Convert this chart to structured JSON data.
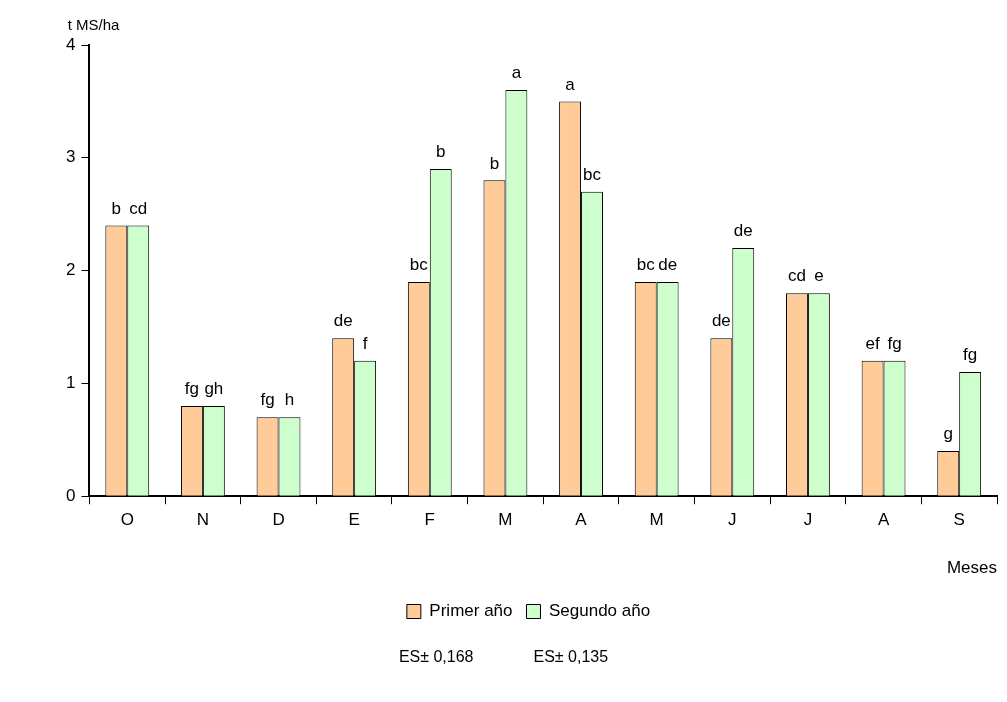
{
  "chart_data": {
    "type": "bar",
    "xlabel": "Meses",
    "ylabel": "t MS/ha",
    "categories": [
      "O",
      "N",
      "D",
      "E",
      "F",
      "M",
      "A",
      "M",
      "J",
      "J",
      "A",
      "S"
    ],
    "series": [
      {
        "name": "Primer año",
        "color": "#ffcc99",
        "values": [
          2.4,
          0.8,
          0.7,
          1.4,
          1.9,
          2.8,
          3.5,
          1.9,
          1.4,
          1.8,
          1.2,
          0.4
        ],
        "value_labels": [
          "b",
          "fg",
          "fg",
          "de",
          "bc",
          "b",
          "a",
          "bc",
          "de",
          "cd",
          "ef",
          "g"
        ]
      },
      {
        "name": "Segundo año",
        "color": "#ccffcc",
        "values": [
          2.4,
          0.8,
          0.7,
          1.2,
          2.9,
          3.6,
          2.7,
          1.9,
          2.2,
          1.8,
          1.2,
          1.1
        ],
        "value_labels": [
          "cd",
          "gh",
          "h",
          "f",
          "b",
          "a",
          "bc",
          "de",
          "de",
          "e",
          "fg",
          "fg"
        ]
      }
    ],
    "ylim": [
      0,
      4
    ],
    "yticks": [
      0,
      1,
      2,
      3,
      4
    ],
    "grid": false,
    "legend": "bottom",
    "annotations": [
      "ES± 0,168",
      "ES± 0,135"
    ]
  }
}
